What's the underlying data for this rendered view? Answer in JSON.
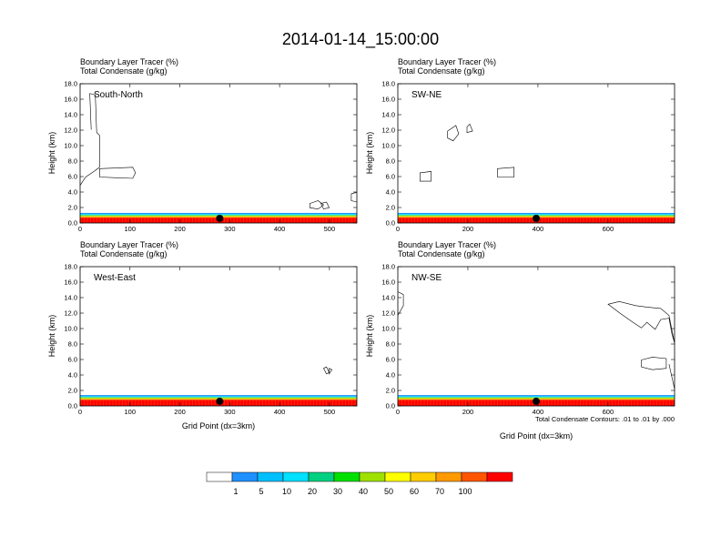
{
  "chart_data": {
    "type": "contour",
    "title": "2014-01-14_15:00:00",
    "shaded_field": "Boundary Layer Tracer   (%)",
    "contour_field": "Total Condensate   (g/kg)",
    "ylabel": "Height (km)",
    "xlabel": "Grid Point (dx=3km)",
    "contour_note": "Total Condensate Contours: .01 to .01 by .000",
    "yticks": [
      "0.0",
      "2.0",
      "4.0",
      "6.0",
      "8.0",
      "10.0",
      "12.0",
      "14.0",
      "16.0",
      "18.0"
    ],
    "ylim": [
      0,
      18
    ],
    "colorbar": {
      "labels": [
        "1",
        "5",
        "10",
        "20",
        "30",
        "40",
        "50",
        "60",
        "70",
        "100"
      ],
      "colors": [
        "#ffffff",
        "#1e90ff",
        "#00bfff",
        "#00e0ff",
        "#00d080",
        "#00e000",
        "#a0e000",
        "#ffff00",
        "#ffcc00",
        "#ff9900",
        "#ff5500",
        "#ff0000"
      ]
    },
    "panels": [
      {
        "name": "South-North",
        "xlim": [
          0,
          555
        ],
        "xticks": [
          "0",
          "100",
          "200",
          "300",
          "400",
          "500"
        ],
        "marker_x": 280,
        "pbl_top_km": 1.3
      },
      {
        "name": "SW-NE",
        "xlim": [
          0,
          790
        ],
        "xticks": [
          "0",
          "200",
          "400",
          "600"
        ],
        "marker_x": 395,
        "pbl_top_km": 1.3
      },
      {
        "name": "West-East",
        "xlim": [
          0,
          555
        ],
        "xticks": [
          "0",
          "100",
          "200",
          "300",
          "400",
          "500"
        ],
        "marker_x": 280,
        "pbl_top_km": 1.4
      },
      {
        "name": "NW-SE",
        "xlim": [
          0,
          790
        ],
        "xticks": [
          "0",
          "200",
          "400",
          "600"
        ],
        "marker_x": 395,
        "pbl_top_km": 1.4
      }
    ]
  }
}
